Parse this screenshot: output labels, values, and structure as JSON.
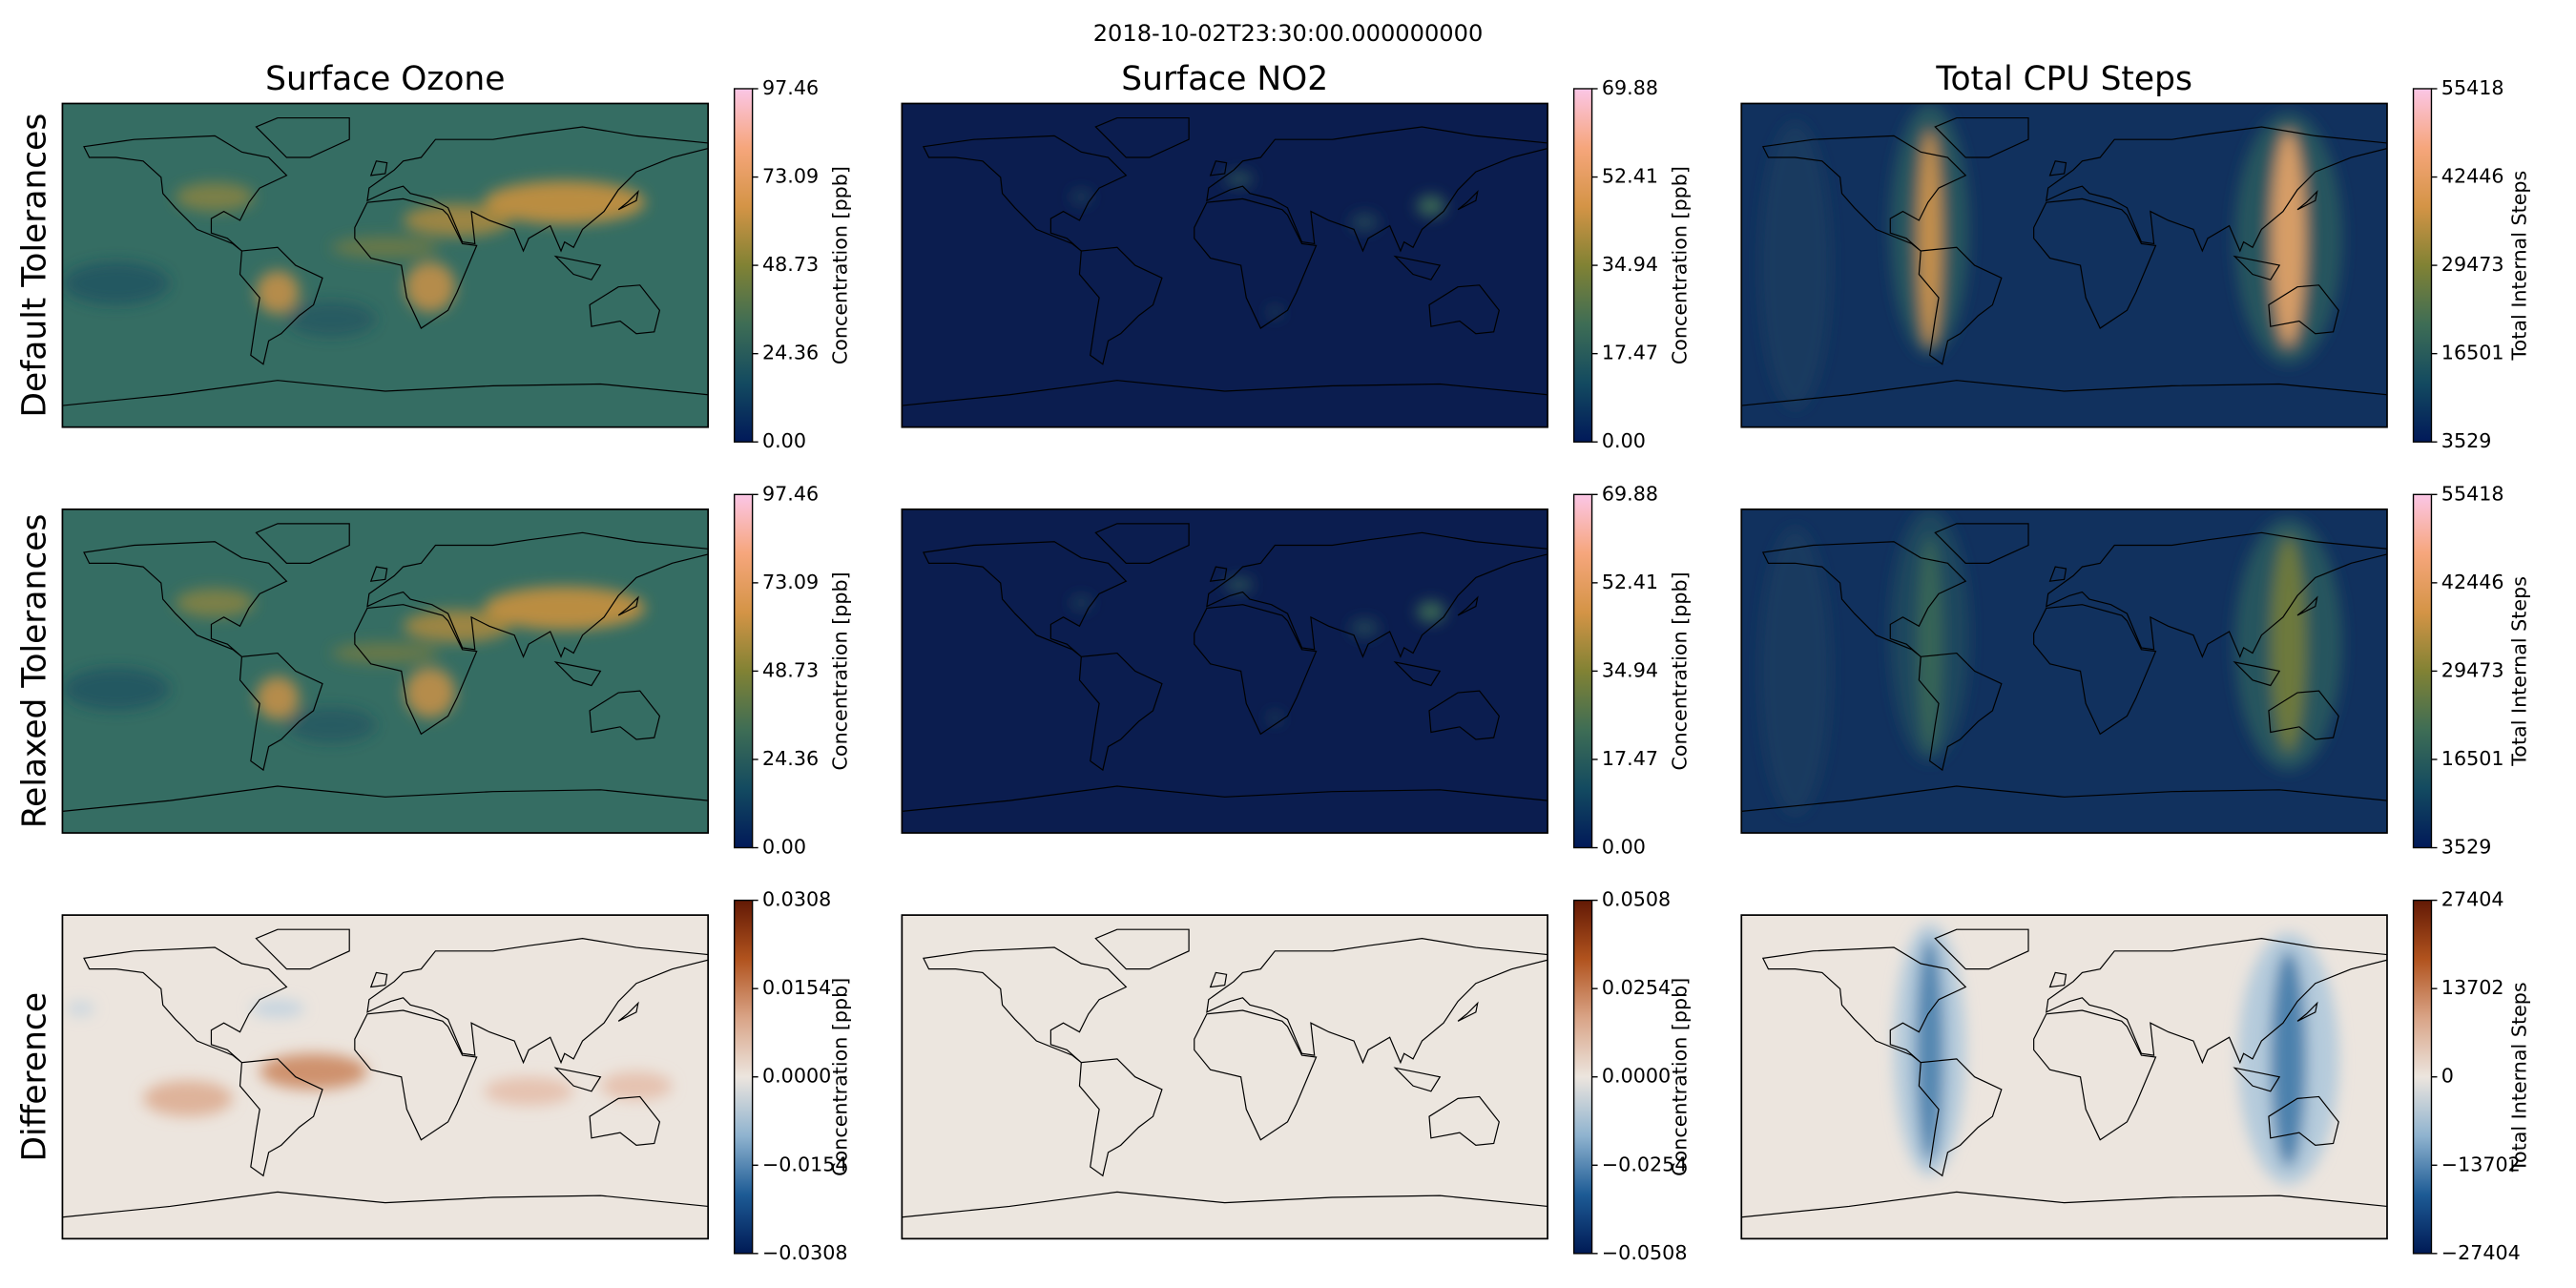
{
  "suptitle": "2018-10-02T23:30:00.000000000",
  "columns": [
    "Surface Ozone",
    "Surface NO2",
    "Total CPU Steps"
  ],
  "rows": [
    "Default Tolerances",
    "Relaxed Tolerances",
    "Difference"
  ],
  "chart_data": [
    {
      "type": "map",
      "colorbar_label": "Concentration [ppb]",
      "clim": [
        0,
        97.46
      ],
      "cticks": [
        {
          "value": 0,
          "label": "0.00"
        },
        24.36,
        48.73,
        73.09,
        97.46
      ],
      "colors": [
        "#011959",
        "#134a60",
        "#3e6d55",
        "#818234",
        "#d49446",
        "#f6a67c",
        "#fbc6e6"
      ]
    },
    {
      "type": "map",
      "colorbar_label": "Concentration [ppb]",
      "clim": [
        0,
        69.88
      ],
      "cticks": [
        {
          "value": 0,
          "label": "0.00"
        },
        17.47,
        34.94,
        52.41,
        69.88
      ],
      "colors": [
        "#011959",
        "#134a60",
        "#3e6d55",
        "#818234",
        "#d49446",
        "#f6a67c",
        "#fbc6e6"
      ]
    },
    {
      "type": "map",
      "colorbar_label": "Total Internal Steps",
      "clim": [
        3529,
        55418
      ],
      "cticks": [
        3529,
        16501,
        29473,
        42446,
        55418
      ],
      "colors": [
        "#011959",
        "#134a60",
        "#3e6d55",
        "#818234",
        "#d49446",
        "#f6a67c",
        "#fbc6e6"
      ]
    },
    {
      "type": "map",
      "colorbar_label": "Concentration [ppb]",
      "clim": [
        0,
        97.46
      ],
      "cticks": [
        {
          "value": 0,
          "label": "0.00"
        },
        24.36,
        48.73,
        73.09,
        97.46
      ],
      "colors": [
        "#011959",
        "#134a60",
        "#3e6d55",
        "#818234",
        "#d49446",
        "#f6a67c",
        "#fbc6e6"
      ]
    },
    {
      "type": "map",
      "colorbar_label": "Concentration [ppb]",
      "clim": [
        0,
        69.88
      ],
      "cticks": [
        {
          "value": 0,
          "label": "0.00"
        },
        17.47,
        34.94,
        52.41,
        69.88
      ],
      "colors": [
        "#011959",
        "#134a60",
        "#3e6d55",
        "#818234",
        "#d49446",
        "#f6a67c",
        "#fbc6e6"
      ]
    },
    {
      "type": "map",
      "colorbar_label": "Total Internal Steps",
      "clim": [
        3529,
        55418
      ],
      "cticks": [
        3529,
        16501,
        29473,
        42446,
        55418
      ],
      "colors": [
        "#011959",
        "#134a60",
        "#3e6d55",
        "#818234",
        "#d49446",
        "#f6a67c",
        "#fbc6e6"
      ]
    },
    {
      "type": "map",
      "colorbar_label": "Concentration [ppb]",
      "clim": [
        -0.0308,
        0.0308
      ],
      "cticks": [
        {
          "value": -0.0308,
          "label": "−0.0308"
        },
        {
          "value": -0.0154,
          "label": "−0.0154"
        },
        {
          "value": 0,
          "label": "0.0000"
        },
        0.0154,
        0.0308
      ],
      "colors": [
        "#001a55",
        "#1d5b95",
        "#8fb3cf",
        "#ece5de",
        "#d9a487",
        "#b1531e",
        "#621905"
      ]
    },
    {
      "type": "map",
      "colorbar_label": "Concentration [ppb]",
      "clim": [
        -0.0508,
        0.0508
      ],
      "cticks": [
        {
          "value": -0.0508,
          "label": "−0.0508"
        },
        {
          "value": -0.0254,
          "label": "−0.0254"
        },
        {
          "value": 0,
          "label": "0.0000"
        },
        0.0254,
        0.0508
      ],
      "colors": [
        "#001a55",
        "#1d5b95",
        "#8fb3cf",
        "#ece5de",
        "#d9a487",
        "#b1531e",
        "#621905"
      ]
    },
    {
      "type": "map",
      "colorbar_label": "Total Internal Steps",
      "clim": [
        -27404,
        27404
      ],
      "cticks": [
        {
          "value": -27404,
          "label": "−27404"
        },
        {
          "value": -13702,
          "label": "−13702"
        },
        0,
        13702,
        27404
      ],
      "colors": [
        "#001a55",
        "#1d5b95",
        "#8fb3cf",
        "#ece5de",
        "#d9a487",
        "#b1531e",
        "#621905"
      ]
    }
  ]
}
